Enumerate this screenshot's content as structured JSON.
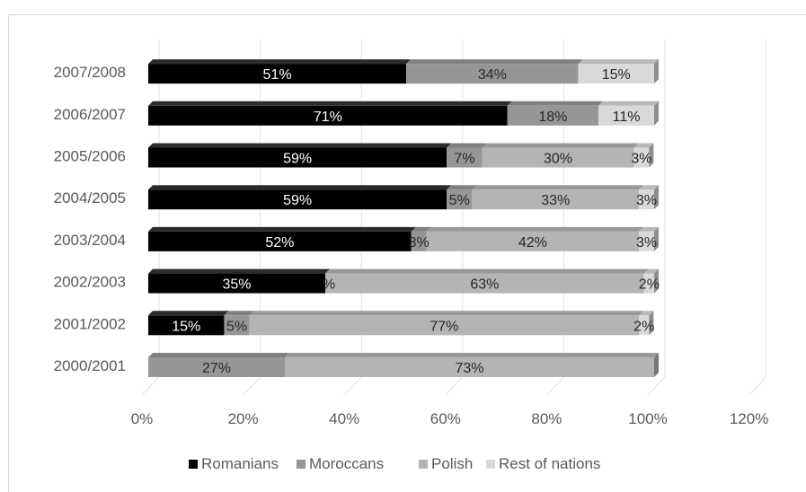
{
  "chart_data": {
    "type": "bar",
    "orientation": "horizontal",
    "stacked": true,
    "style": "3d",
    "categories": [
      "2000/2001",
      "2001/2002",
      "2002/2003",
      "2003/2004",
      "2004/2005",
      "2005/2006",
      "2006/2007",
      "2007/2008"
    ],
    "series": [
      {
        "name": "Romanians",
        "color": "#000000",
        "values": [
          0,
          15,
          35,
          52,
          59,
          59,
          71,
          51
        ]
      },
      {
        "name": "Moroccans",
        "color": "#969696",
        "values": [
          27,
          5,
          0,
          3,
          5,
          7,
          18,
          34
        ]
      },
      {
        "name": "Polish",
        "color": "#b4b4b4",
        "values": [
          73,
          77,
          63,
          42,
          33,
          30,
          0,
          0
        ]
      },
      {
        "name": "Rest of nations",
        "color": "#d9d9d9",
        "values": [
          0,
          2,
          2,
          3,
          3,
          3,
          11,
          15
        ]
      }
    ],
    "data_labels": [
      [
        "",
        "15%",
        "35%",
        "52%",
        "59%",
        "59%",
        "71%",
        "51%"
      ],
      [
        "27%",
        "5%",
        "%",
        "3%",
        "5%",
        "7%",
        "18%",
        "34%"
      ],
      [
        "73%",
        "77%",
        "63%",
        "42%",
        "33%",
        "30%",
        "",
        ""
      ],
      [
        "",
        "2%",
        "2%",
        "3%",
        "3%",
        "3%",
        "11%",
        "15%"
      ]
    ],
    "x_ticks": [
      "0%",
      "20%",
      "40%",
      "60%",
      "80%",
      "100%",
      "120%"
    ],
    "xlim": [
      0,
      120
    ],
    "title": "",
    "xlabel": "",
    "ylabel": "",
    "grid": true,
    "legend_position": "bottom"
  }
}
